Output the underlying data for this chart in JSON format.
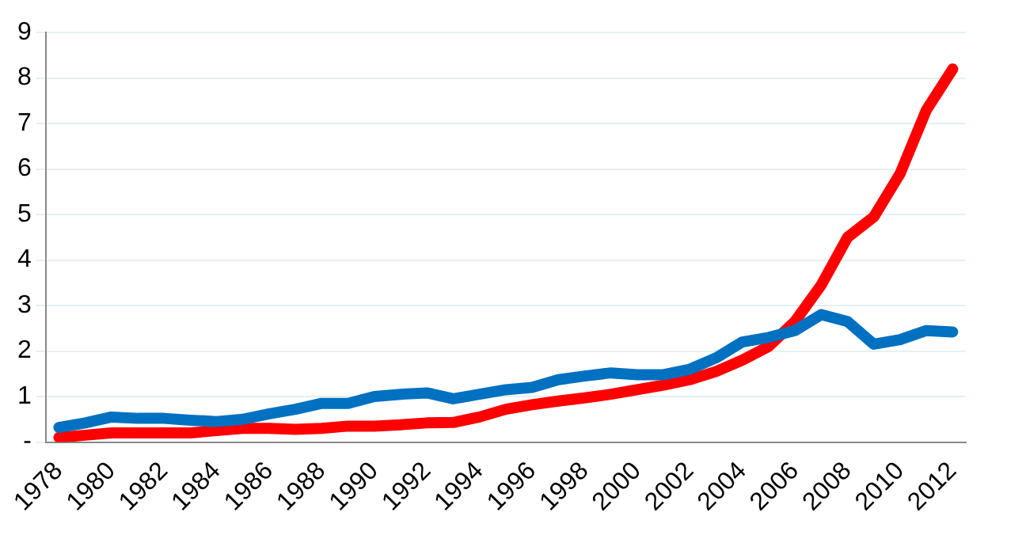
{
  "chart_data": {
    "type": "line",
    "categories": [
      "1978",
      null,
      "1980",
      null,
      "1982",
      null,
      "1984",
      null,
      "1986",
      null,
      "1988",
      null,
      "1990",
      null,
      "1992",
      null,
      "1994",
      null,
      "1996",
      null,
      "1998",
      null,
      "2000",
      null,
      "2002",
      null,
      "2004",
      null,
      "2006",
      null,
      "2008",
      null,
      "2010",
      null,
      "2012"
    ],
    "series": [
      {
        "color": "#ff0000",
        "values": [
          0.1,
          0.15,
          0.2,
          0.2,
          0.2,
          0.2,
          0.25,
          0.3,
          0.3,
          0.28,
          0.3,
          0.35,
          0.35,
          0.38,
          0.42,
          0.43,
          0.55,
          0.72,
          0.82,
          0.9,
          0.97,
          1.05,
          1.15,
          1.25,
          1.37,
          1.55,
          1.8,
          2.1,
          2.65,
          3.45,
          4.5,
          4.95,
          5.9,
          7.3,
          8.2
        ]
      },
      {
        "color": "#0070c0",
        "values": [
          0.32,
          0.42,
          0.55,
          0.52,
          0.52,
          0.48,
          0.45,
          0.5,
          0.62,
          0.72,
          0.85,
          0.85,
          1.0,
          1.05,
          1.08,
          0.95,
          1.05,
          1.15,
          1.2,
          1.37,
          1.45,
          1.52,
          1.48,
          1.48,
          1.6,
          1.85,
          2.2,
          2.3,
          2.45,
          2.8,
          2.65,
          2.15,
          2.25,
          2.45,
          2.42
        ]
      }
    ],
    "ylim": [
      0,
      9
    ],
    "yticks": [
      {
        "value": 0,
        "label": "-"
      },
      1,
      2,
      3,
      4,
      5,
      6,
      7,
      8,
      9
    ],
    "grid": "y",
    "legend": false,
    "marker": "none",
    "line_style": "solid"
  }
}
